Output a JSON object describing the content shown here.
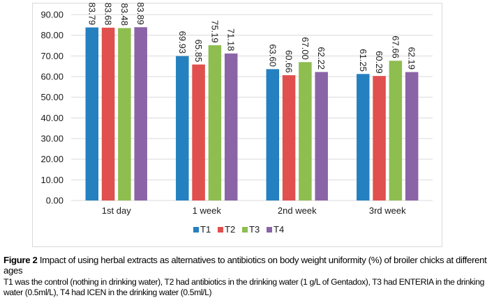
{
  "chart_data": {
    "type": "bar",
    "title": "",
    "xlabel": "",
    "ylabel": "",
    "ylim": [
      0,
      90
    ],
    "yticks": [
      "0.00",
      "10.00",
      "20.00",
      "30.00",
      "40.00",
      "50.00",
      "60.00",
      "70.00",
      "80.00",
      "90.00"
    ],
    "categories": [
      "1st day",
      "1 week",
      "2nd week",
      "3rd week"
    ],
    "series": [
      {
        "name": "T1",
        "color": "#2580c0",
        "values": [
          83.79,
          69.93,
          63.6,
          61.25
        ],
        "labels": [
          "83.79",
          "69.93",
          "63.60",
          "61.25"
        ]
      },
      {
        "name": "T2",
        "color": "#e0504e",
        "values": [
          83.68,
          65.85,
          60.66,
          60.29
        ],
        "labels": [
          "83.68",
          "65.85",
          "60.66",
          "60.29"
        ]
      },
      {
        "name": "T3",
        "color": "#8ebd50",
        "values": [
          83.48,
          75.19,
          67.0,
          67.66
        ],
        "labels": [
          "83.48",
          "75.19",
          "67.00",
          "67.66"
        ]
      },
      {
        "name": "T4",
        "color": "#8b64a7",
        "values": [
          83.89,
          71.18,
          62.22,
          62.19
        ],
        "labels": [
          "83.89",
          "71.18",
          "62.22",
          "62.19"
        ]
      }
    ],
    "grid": true,
    "legend_position": "bottom-center",
    "data_labels": "rotated-vertical"
  },
  "caption": {
    "figure_label": "Figure 2",
    "text": " Impact of using herbal extracts as alternatives to antibiotics on body weight uniformity (%) of broiler chicks at different ages",
    "note": "T1 was the control (nothing in drinking water), T2 had antibiotics in the drinking water (1 g/L of Gentadox), T3 had ENTERIA in the drinking water (0.5ml/L), T4 had ICEN in the drinking water (0.5ml/L)"
  }
}
